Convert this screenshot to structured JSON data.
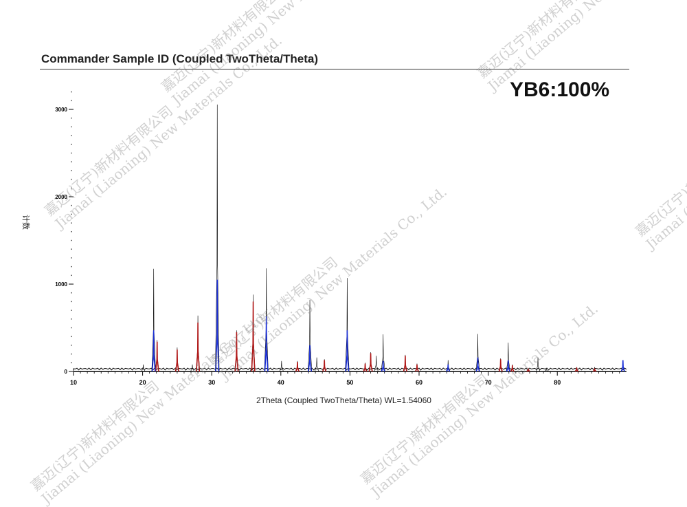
{
  "watermark": "嘉迈(辽宁)新材料有限公司 Jiamai (Liaoning) New Materials Co., Ltd.",
  "watermark_lines": [
    "嘉迈(辽宁)新材料有限公司",
    "Jiamai (Liaoning) New Materials Co., Ltd."
  ],
  "chart_data": {
    "type": "line",
    "title": "Commander Sample ID (Coupled TwoTheta/Theta)",
    "annotation": "YB6:100%",
    "xlabel": "2Theta (Coupled TwoTheta/Theta) WL=1.54060",
    "ylabel": "计数",
    "xlim": [
      10,
      90
    ],
    "ylim": [
      0,
      3300
    ],
    "xticks": [
      10,
      20,
      30,
      40,
      50,
      60,
      70,
      80
    ],
    "yticks": [
      0,
      1000,
      2000,
      3000
    ],
    "grid": false,
    "colors": {
      "observed": "#000000",
      "red": "#b01818",
      "blue": "#1a2fd8"
    },
    "series": [
      {
        "color": "observed",
        "peaks": [
          [
            20.1,
            80
          ],
          [
            21.6,
            1175
          ],
          [
            22.1,
            360
          ],
          [
            25.0,
            275
          ],
          [
            27.2,
            80
          ],
          [
            28.0,
            640
          ],
          [
            30.8,
            3055
          ],
          [
            33.6,
            470
          ],
          [
            35.8,
            80
          ],
          [
            36.0,
            880
          ],
          [
            37.9,
            1180
          ],
          [
            40.1,
            120
          ],
          [
            42.4,
            120
          ],
          [
            44.2,
            820
          ],
          [
            45.2,
            160
          ],
          [
            46.3,
            140
          ],
          [
            49.6,
            1070
          ],
          [
            52.2,
            100
          ],
          [
            53.0,
            220
          ],
          [
            53.8,
            180
          ],
          [
            54.8,
            425
          ],
          [
            58.0,
            190
          ],
          [
            59.7,
            90
          ],
          [
            64.2,
            130
          ],
          [
            68.5,
            430
          ],
          [
            71.8,
            150
          ],
          [
            72.9,
            330
          ],
          [
            73.5,
            80
          ],
          [
            75.8,
            40
          ],
          [
            77.2,
            160
          ],
          [
            78.4,
            40
          ],
          [
            82.8,
            50
          ],
          [
            85.4,
            50
          ],
          [
            89.5,
            130
          ]
        ]
      },
      {
        "color": "red",
        "peaks": [
          [
            22.1,
            340
          ],
          [
            25.0,
            250
          ],
          [
            28.0,
            560
          ],
          [
            33.6,
            450
          ],
          [
            36.0,
            800
          ],
          [
            42.4,
            110
          ],
          [
            46.3,
            130
          ],
          [
            52.2,
            90
          ],
          [
            53.0,
            210
          ],
          [
            58.0,
            180
          ],
          [
            59.7,
            80
          ],
          [
            71.8,
            140
          ],
          [
            73.5,
            70
          ],
          [
            75.8,
            35
          ],
          [
            82.8,
            45
          ],
          [
            85.4,
            35
          ]
        ]
      },
      {
        "color": "blue",
        "peaks": [
          [
            21.6,
            470
          ],
          [
            30.8,
            1050
          ],
          [
            37.9,
            630
          ],
          [
            44.2,
            300
          ],
          [
            49.6,
            470
          ],
          [
            54.8,
            120
          ],
          [
            64.2,
            80
          ],
          [
            68.5,
            160
          ],
          [
            72.9,
            130
          ],
          [
            89.5,
            130
          ]
        ]
      }
    ]
  }
}
